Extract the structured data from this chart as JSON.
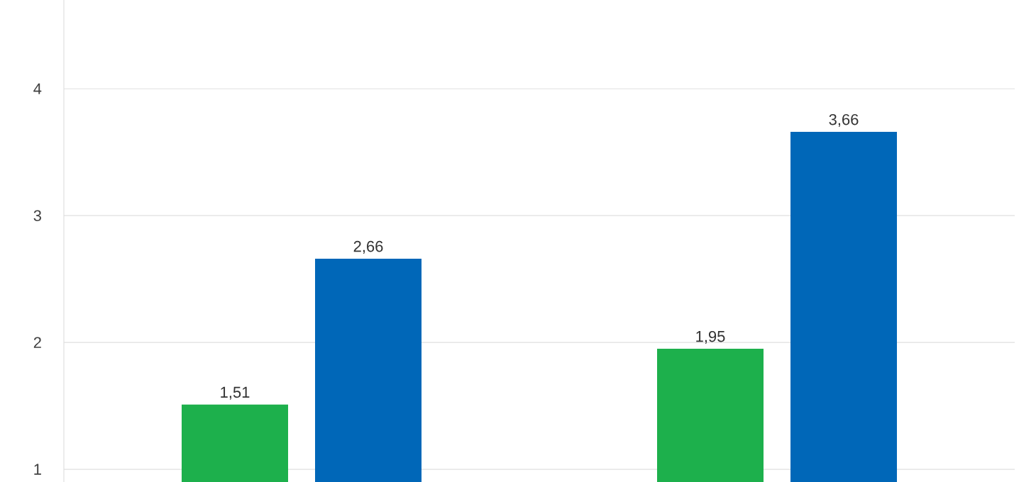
{
  "chart_data": {
    "type": "bar",
    "categories": [
      null,
      null
    ],
    "series": [
      {
        "color": "#1db04c",
        "values": [
          1.51,
          1.95
        ],
        "value_labels": [
          "1,51",
          "1,95"
        ]
      },
      {
        "color": "#0067b8",
        "values": [
          2.66,
          3.66
        ],
        "value_labels": [
          "2,66",
          "3,66"
        ]
      }
    ],
    "ylim": [
      0.9,
      4.7
    ],
    "yticks": [
      1,
      2,
      3,
      4
    ],
    "grid": "y"
  }
}
